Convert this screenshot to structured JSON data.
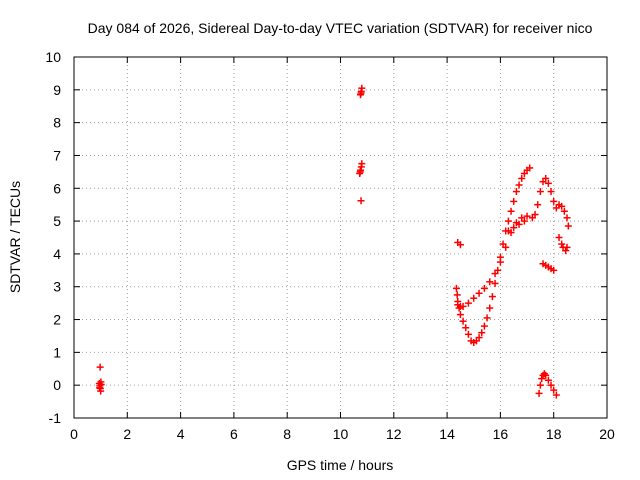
{
  "chart_data": {
    "type": "scatter",
    "title": "Day 084 of 2026, Sidereal Day-to-day VTEC variation (SDTVAR) for receiver nico",
    "xlabel": "GPS time / hours",
    "ylabel": "SDTVAR / TECUs",
    "xlim": [
      0,
      20
    ],
    "ylim": [
      -1,
      10
    ],
    "xticks": [
      0,
      2,
      4,
      6,
      8,
      10,
      12,
      14,
      16,
      18,
      20
    ],
    "yticks": [
      -1,
      0,
      1,
      2,
      3,
      4,
      5,
      6,
      7,
      8,
      9,
      10
    ],
    "grid": true,
    "marker": "+",
    "marker_color": "#ff0000",
    "series": [
      {
        "name": "SDTVAR",
        "points": [
          [
            0.98,
            0.55
          ],
          [
            0.95,
            0.05
          ],
          [
            0.97,
            -0.02
          ],
          [
            0.99,
            -0.1
          ],
          [
            1.0,
            -0.18
          ],
          [
            1.02,
            0.02
          ],
          [
            0.96,
            -0.08
          ],
          [
            1.01,
            0.1
          ],
          [
            10.75,
            8.85
          ],
          [
            10.78,
            8.95
          ],
          [
            10.8,
            9.05
          ],
          [
            10.77,
            8.9
          ],
          [
            10.72,
            6.45
          ],
          [
            10.75,
            6.55
          ],
          [
            10.78,
            6.65
          ],
          [
            10.8,
            6.75
          ],
          [
            10.74,
            6.5
          ],
          [
            10.77,
            5.62
          ],
          [
            14.4,
            4.35
          ],
          [
            14.5,
            4.28
          ],
          [
            14.35,
            2.95
          ],
          [
            14.38,
            2.75
          ],
          [
            14.4,
            2.55
          ],
          [
            14.45,
            2.35
          ],
          [
            14.5,
            2.15
          ],
          [
            14.6,
            1.95
          ],
          [
            14.7,
            1.75
          ],
          [
            14.8,
            1.55
          ],
          [
            14.9,
            1.35
          ],
          [
            15.0,
            1.3
          ],
          [
            15.1,
            1.35
          ],
          [
            15.2,
            1.45
          ],
          [
            15.3,
            1.6
          ],
          [
            15.4,
            1.8
          ],
          [
            15.5,
            2.05
          ],
          [
            15.6,
            2.35
          ],
          [
            15.7,
            2.7
          ],
          [
            15.8,
            3.1
          ],
          [
            15.9,
            3.5
          ],
          [
            16.0,
            3.9
          ],
          [
            16.1,
            4.3
          ],
          [
            16.2,
            4.7
          ],
          [
            16.3,
            5.0
          ],
          [
            16.4,
            5.3
          ],
          [
            16.5,
            5.6
          ],
          [
            16.6,
            5.9
          ],
          [
            16.7,
            6.1
          ],
          [
            16.8,
            6.3
          ],
          [
            16.9,
            6.45
          ],
          [
            17.0,
            6.55
          ],
          [
            17.1,
            6.62
          ],
          [
            14.4,
            2.45
          ],
          [
            14.5,
            2.4
          ],
          [
            14.6,
            2.4
          ],
          [
            14.8,
            2.5
          ],
          [
            15.0,
            2.65
          ],
          [
            15.2,
            2.8
          ],
          [
            15.4,
            2.95
          ],
          [
            15.6,
            3.15
          ],
          [
            15.8,
            3.4
          ],
          [
            16.0,
            3.75
          ],
          [
            16.2,
            4.2
          ],
          [
            16.4,
            4.65
          ],
          [
            16.6,
            4.95
          ],
          [
            16.8,
            5.1
          ],
          [
            17.0,
            5.15
          ],
          [
            17.2,
            5.1
          ],
          [
            17.3,
            5.2
          ],
          [
            17.4,
            5.5
          ],
          [
            17.5,
            5.9
          ],
          [
            17.6,
            6.2
          ],
          [
            17.7,
            6.3
          ],
          [
            17.8,
            6.15
          ],
          [
            17.9,
            5.9
          ],
          [
            18.0,
            5.6
          ],
          [
            18.1,
            5.4
          ],
          [
            18.2,
            5.5
          ],
          [
            18.3,
            5.45
          ],
          [
            18.4,
            5.3
          ],
          [
            18.5,
            5.1
          ],
          [
            18.55,
            4.85
          ],
          [
            16.3,
            4.7
          ],
          [
            16.5,
            4.8
          ],
          [
            16.7,
            4.9
          ],
          [
            16.9,
            5.0
          ],
          [
            17.6,
            3.7
          ],
          [
            17.7,
            3.65
          ],
          [
            17.8,
            3.6
          ],
          [
            17.9,
            3.55
          ],
          [
            18.0,
            3.5
          ],
          [
            18.2,
            4.5
          ],
          [
            18.3,
            4.3
          ],
          [
            18.35,
            4.2
          ],
          [
            18.45,
            4.1
          ],
          [
            18.5,
            4.2
          ],
          [
            17.45,
            -0.25
          ],
          [
            17.5,
            0.0
          ],
          [
            17.55,
            0.2
          ],
          [
            17.6,
            0.3
          ],
          [
            17.65,
            0.35
          ],
          [
            17.7,
            0.3
          ],
          [
            17.8,
            0.15
          ],
          [
            17.9,
            0.0
          ],
          [
            18.0,
            -0.15
          ],
          [
            18.1,
            -0.3
          ]
        ]
      }
    ]
  }
}
